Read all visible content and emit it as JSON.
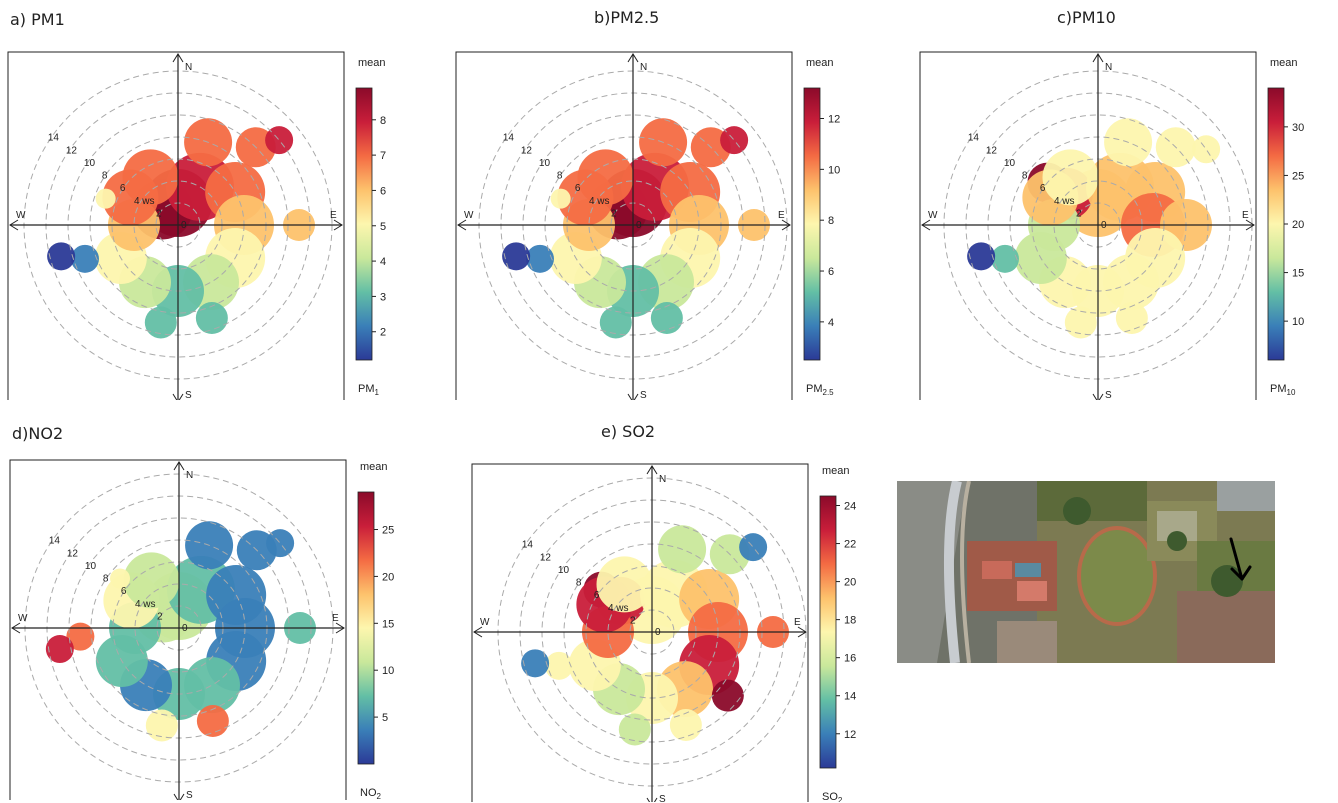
{
  "panels": [
    {
      "id": "a",
      "title": "a) PM1",
      "legend_title": "mean",
      "legend_label": "PM",
      "legend_sub": "1",
      "ticks": [
        2,
        3,
        4,
        5,
        6,
        7,
        8
      ],
      "ws_labels": [
        "2",
        "4 ws",
        "6",
        "8",
        "10",
        "12",
        "14"
      ],
      "compass": {
        "n": "N",
        "s": "S",
        "e": "E",
        "w": "W",
        "origin": "0"
      }
    },
    {
      "id": "b",
      "title": "b)PM2.5",
      "legend_title": "mean",
      "legend_label": "PM",
      "legend_sub": "2.5",
      "ticks": [
        4,
        6,
        8,
        10,
        12
      ],
      "ws_labels": [
        "2",
        "4 ws",
        "6",
        "8",
        "10",
        "12",
        "14"
      ],
      "compass": {
        "n": "N",
        "s": "S",
        "e": "E",
        "w": "W",
        "origin": "0"
      }
    },
    {
      "id": "c",
      "title": "c)PM10",
      "legend_title": "mean",
      "legend_label": "PM",
      "legend_sub": "10",
      "ticks": [
        10,
        15,
        20,
        25,
        30
      ],
      "ws_labels": [
        "2",
        "4 ws",
        "6",
        "8",
        "10",
        "12",
        "14"
      ],
      "compass": {
        "n": "N",
        "s": "S",
        "e": "E",
        "w": "W",
        "origin": "0"
      }
    },
    {
      "id": "d",
      "title": "d)NO2",
      "legend_title": "mean",
      "legend_label": "NO",
      "legend_sub": "2",
      "ticks": [
        5,
        10,
        15,
        20,
        25
      ],
      "ws_labels": [
        "2",
        "4 ws",
        "6",
        "8",
        "10",
        "12",
        "14"
      ],
      "compass": {
        "n": "N",
        "s": "S",
        "e": "E",
        "w": "W",
        "origin": "0"
      }
    },
    {
      "id": "e",
      "title": "e) SO2",
      "legend_title": "mean",
      "legend_label": "SO",
      "legend_sub": "2",
      "ticks": [
        12,
        14,
        16,
        18,
        20,
        22,
        24
      ],
      "ws_labels": [
        "2",
        "4 ws",
        "6",
        "8",
        "10",
        "12",
        "14"
      ],
      "compass": {
        "n": "N",
        "s": "S",
        "e": "E",
        "w": "W",
        "origin": "0"
      }
    }
  ],
  "chart_data": [
    {
      "type": "heatmap",
      "subtype": "polar",
      "title": "a) PM1",
      "legend_title": "mean",
      "variable": "PM1",
      "colorbar_range": [
        1.2,
        8.9
      ],
      "colorbar_ticks": [
        2,
        3,
        4,
        5,
        6,
        7,
        8
      ],
      "radial_axis_ticks": [
        2,
        4,
        6,
        8,
        10,
        12,
        14
      ],
      "radial_axis_label": "ws",
      "hotspot": {
        "direction": "NW near centre",
        "value": 8.9,
        "ws": 2
      }
    },
    {
      "type": "heatmap",
      "subtype": "polar",
      "title": "b)PM2.5",
      "legend_title": "mean",
      "variable": "PM2.5",
      "colorbar_range": [
        2.5,
        13.2
      ],
      "colorbar_ticks": [
        4,
        6,
        8,
        10,
        12
      ],
      "radial_axis_ticks": [
        2,
        4,
        6,
        8,
        10,
        12,
        14
      ],
      "radial_axis_label": "ws",
      "hotspot": {
        "direction": "NW near centre",
        "value": 13,
        "ws": 2
      }
    },
    {
      "type": "heatmap",
      "subtype": "polar",
      "title": "c)PM10",
      "legend_title": "mean",
      "variable": "PM10",
      "colorbar_range": [
        6,
        34
      ],
      "colorbar_ticks": [
        10,
        15,
        20,
        25,
        30
      ],
      "radial_axis_ticks": [
        2,
        4,
        6,
        8,
        10,
        12,
        14
      ],
      "radial_axis_label": "ws",
      "hotspot": {
        "direction": "NW",
        "value": 33,
        "ws": 6
      }
    },
    {
      "type": "heatmap",
      "subtype": "polar",
      "title": "d)NO2",
      "legend_title": "mean",
      "variable": "NO2",
      "colorbar_range": [
        0,
        29
      ],
      "colorbar_ticks": [
        5,
        10,
        15,
        20,
        25
      ],
      "radial_axis_ticks": [
        2,
        4,
        6,
        8,
        10,
        12,
        14
      ],
      "radial_axis_label": "ws",
      "hotspot": {
        "direction": "W",
        "value": 28,
        "ws": 11
      }
    },
    {
      "type": "heatmap",
      "subtype": "polar",
      "title": "e) SO2",
      "legend_title": "mean",
      "variable": "SO2",
      "colorbar_range": [
        10.2,
        24.5
      ],
      "colorbar_ticks": [
        12,
        14,
        16,
        18,
        20,
        22,
        24
      ],
      "radial_axis_ticks": [
        2,
        4,
        6,
        8,
        10,
        12,
        14
      ],
      "radial_axis_label": "ws",
      "hotspot": {
        "direction": "NW",
        "value": 24,
        "ws": 6
      }
    }
  ],
  "colors": {
    "scale": [
      "#2b3a97",
      "#3a7fb8",
      "#63bfa5",
      "#c9e89b",
      "#fdf6ae",
      "#fdc26c",
      "#f46b43",
      "#c91e3a",
      "#8b0a2a"
    ],
    "ring": "#aaaaaa",
    "frame": "#222222"
  },
  "photo": {
    "arrow_icon": "arrow-down-icon"
  }
}
